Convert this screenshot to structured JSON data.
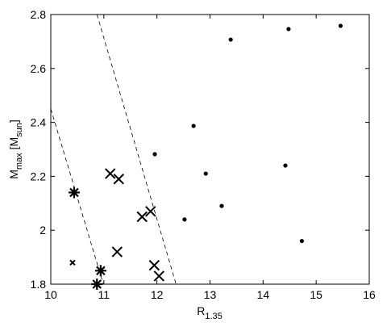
{
  "chart_data": {
    "type": "scatter",
    "xlabel": [
      "R",
      "1.35"
    ],
    "ylabel": [
      "M",
      "max",
      " [M",
      "sun",
      "]"
    ],
    "xlim": [
      10,
      16
    ],
    "ylim": [
      1.8,
      2.8
    ],
    "xticks": [
      10,
      11,
      12,
      13,
      14,
      15,
      16
    ],
    "yticks": [
      1.8,
      2,
      2.2,
      2.4,
      2.6,
      2.8
    ],
    "grid": false,
    "series": [
      {
        "marker": "dot",
        "color": "#000000",
        "x": [
          13.39,
          14.48,
          15.46,
          12.69,
          11.96,
          12.92,
          14.42,
          12.52,
          13.22,
          14.73
        ],
        "values": [
          2.707,
          2.746,
          2.758,
          2.387,
          2.282,
          2.21,
          2.24,
          2.04,
          2.09,
          1.96
        ]
      },
      {
        "marker": "cross",
        "color": "#000000",
        "x": [
          11.12,
          11.28,
          11.88,
          11.72,
          11.25,
          11.95,
          12.04
        ],
        "values": [
          2.21,
          2.19,
          2.07,
          2.05,
          1.92,
          1.87,
          1.83
        ]
      },
      {
        "marker": "small-cross",
        "color": "#000000",
        "x": [
          10.41
        ],
        "values": [
          1.88
        ]
      },
      {
        "marker": "asterisk",
        "color": "#000000",
        "x": [
          10.44,
          10.94,
          10.87
        ],
        "values": [
          2.14,
          1.85,
          1.8
        ]
      }
    ],
    "lines": [
      {
        "color": "#000000",
        "x": [
          10,
          10.99
        ],
        "values": [
          2.45,
          1.8
        ]
      },
      {
        "color": "#000000",
        "x": [
          10.87,
          12.36
        ],
        "values": [
          2.8,
          1.8
        ]
      }
    ]
  }
}
